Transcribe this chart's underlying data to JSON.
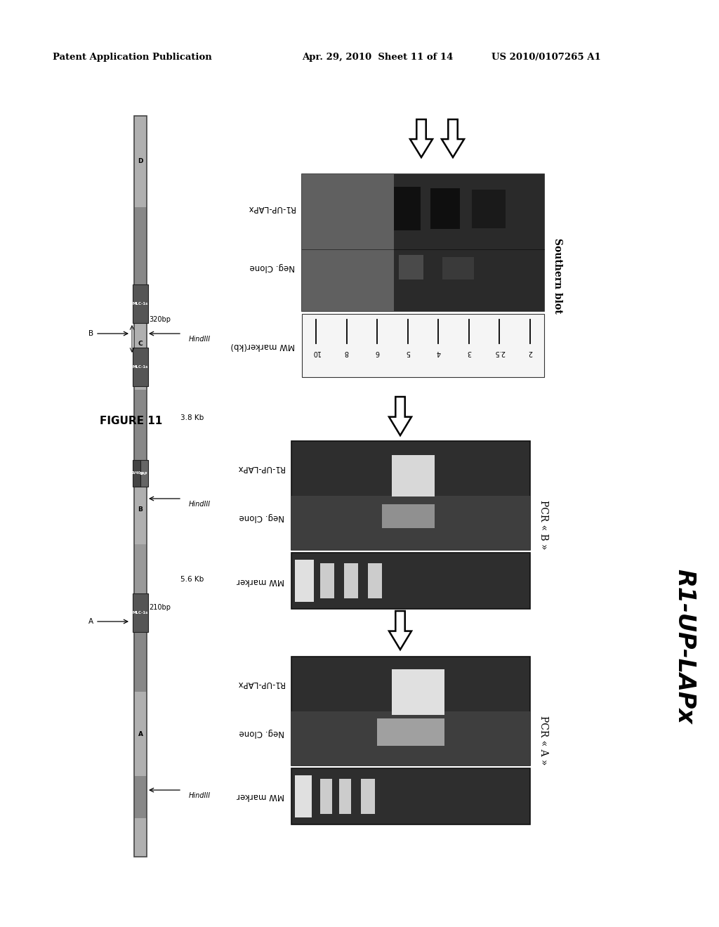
{
  "page_header_left": "Patent Application Publication",
  "page_header_mid": "Apr. 29, 2010  Sheet 11 of 14",
  "page_header_right": "US 2010/0107265 A1",
  "figure_label": "FIGURE 11",
  "right_label": "R1-UP-LAPx",
  "background_color": "#ffffff",
  "southern_blot_label": "Southern blot",
  "pcr_b_label": "PCR « B »",
  "pcr_a_label": "PCR « A »",
  "mw_marker_label": "MW marker(kb)",
  "mw_marker_label2": "MW marker",
  "neg_clone_label": "Neg. Clone",
  "r1_up_lapx_label": "R1-UP-LAPx",
  "mw_values": [
    "10",
    "8",
    "6",
    "5",
    "4",
    "3",
    "2.5",
    "2"
  ],
  "kb_38": "3.8 Kb",
  "kb_56": "5.6 Kb",
  "bp_320": "B ←–––– 320bp",
  "bp_210": "A ←–––– 210bp",
  "hindIII_label": "HindIII"
}
